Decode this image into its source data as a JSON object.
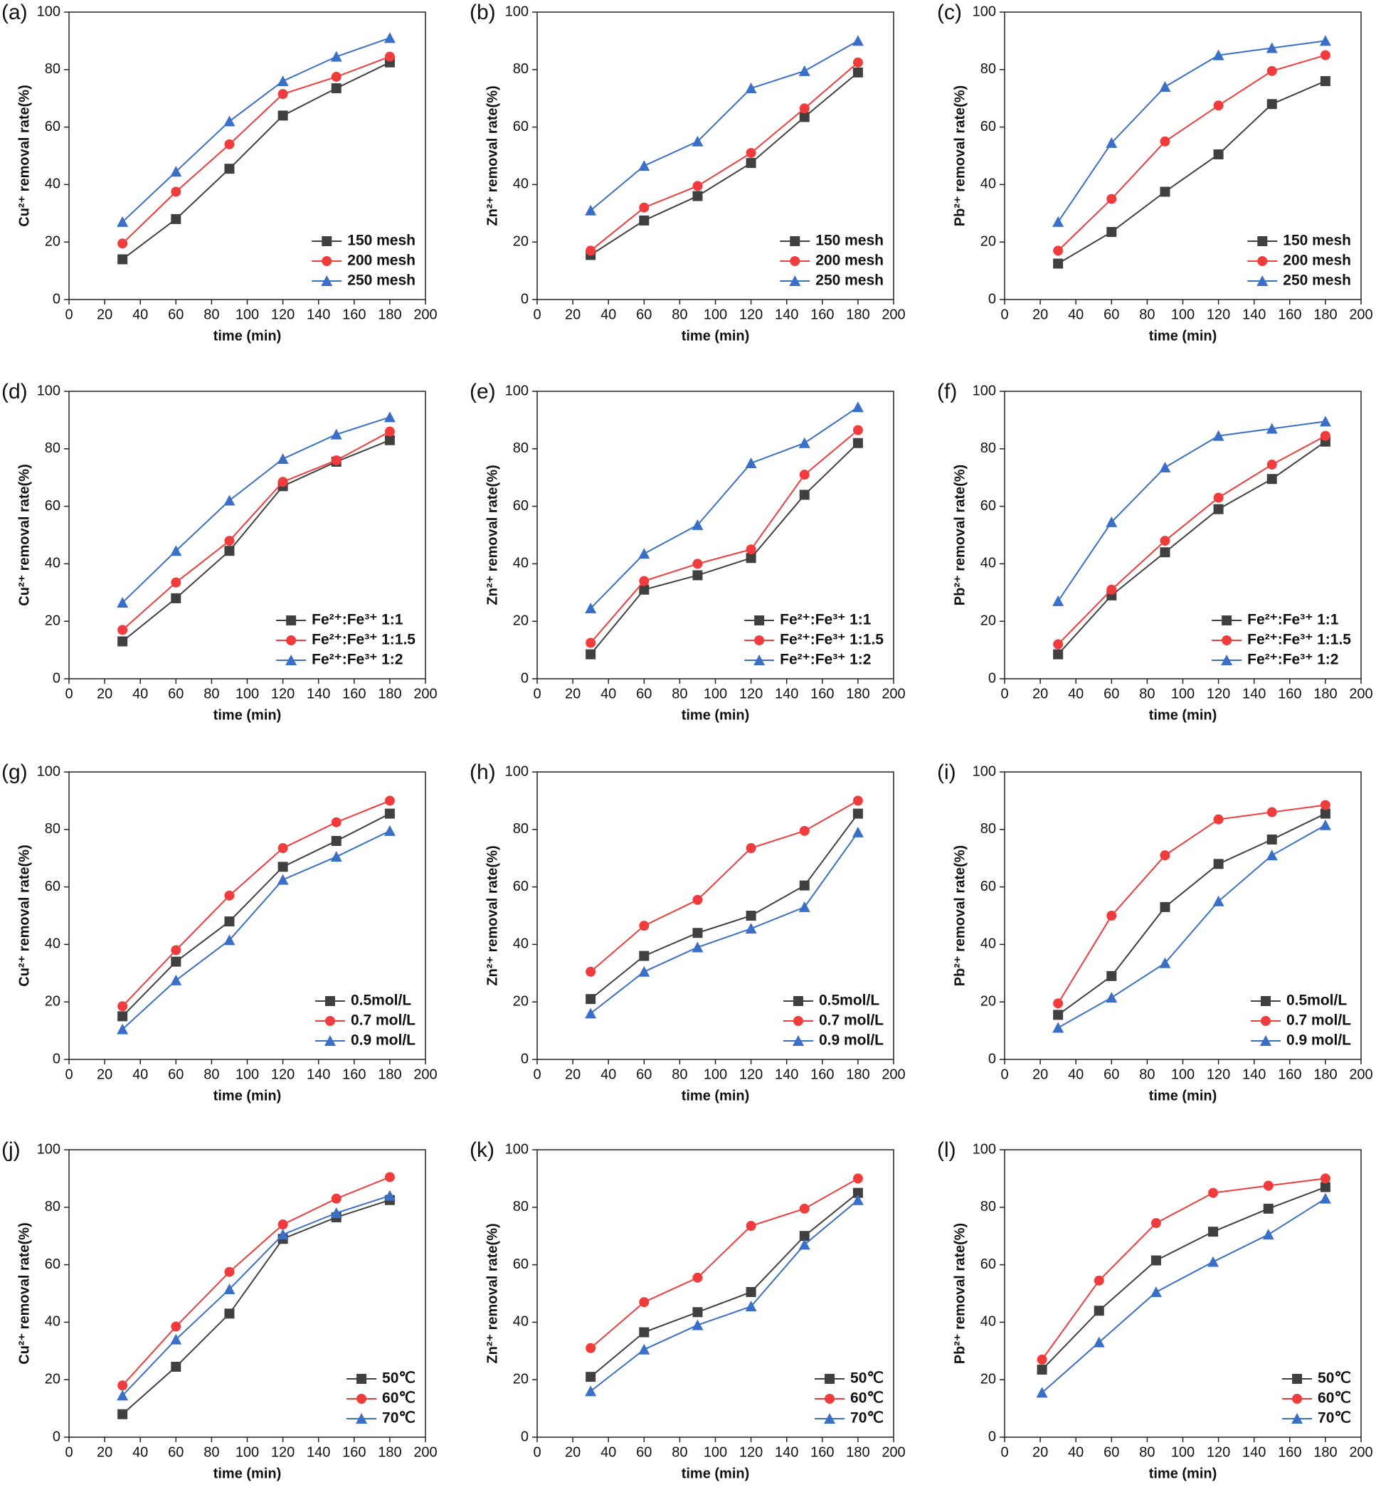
{
  "chart_data": [
    {
      "type": "line",
      "panel": "(a)",
      "xlabel": "time (min)",
      "ylabel": "Cu²⁺ removal rate(%)",
      "x": [
        30,
        60,
        90,
        120,
        150,
        180
      ],
      "xlim": [
        0,
        200
      ],
      "ylim": [
        0,
        100
      ],
      "xticks": [
        0,
        20,
        40,
        60,
        80,
        100,
        120,
        140,
        160,
        180,
        200
      ],
      "yticks": [
        0,
        20,
        40,
        60,
        80,
        100
      ],
      "legend": "lower right",
      "series": [
        {
          "name": "150 mesh",
          "color": "#404040",
          "marker": "square",
          "values": [
            14,
            28,
            45.5,
            64,
            73.5,
            82.5
          ]
        },
        {
          "name": "200 mesh",
          "color": "#f03c3c",
          "marker": "circle",
          "values": [
            19.5,
            37.5,
            54,
            71.5,
            77.5,
            84.5
          ]
        },
        {
          "name": "250 mesh",
          "color": "#3a6fc8",
          "marker": "triangle",
          "values": [
            27,
            44.5,
            62,
            76,
            84.5,
            91
          ]
        }
      ]
    },
    {
      "type": "line",
      "panel": "(b)",
      "xlabel": "time (min)",
      "ylabel": "Zn²⁺ removal rate(%)",
      "x": [
        30,
        60,
        90,
        120,
        150,
        180
      ],
      "xlim": [
        0,
        200
      ],
      "ylim": [
        0,
        100
      ],
      "xticks": [
        0,
        20,
        40,
        60,
        80,
        100,
        120,
        140,
        160,
        180,
        200
      ],
      "yticks": [
        0,
        20,
        40,
        60,
        80,
        100
      ],
      "legend": "lower right",
      "series": [
        {
          "name": "150 mesh",
          "color": "#404040",
          "marker": "square",
          "values": [
            15.5,
            27.5,
            36,
            47.5,
            63.5,
            79
          ]
        },
        {
          "name": "200 mesh",
          "color": "#f03c3c",
          "marker": "circle",
          "values": [
            17,
            32,
            39.5,
            51,
            66.5,
            82.5
          ]
        },
        {
          "name": "250 mesh",
          "color": "#3a6fc8",
          "marker": "triangle",
          "values": [
            31,
            46.5,
            55,
            73.5,
            79.5,
            90
          ]
        }
      ]
    },
    {
      "type": "line",
      "panel": "(c)",
      "xlabel": "time (min)",
      "ylabel": "Pb²⁺ removal rate(%)",
      "x": [
        30,
        60,
        90,
        120,
        150,
        180
      ],
      "xlim": [
        0,
        200
      ],
      "ylim": [
        0,
        100
      ],
      "xticks": [
        0,
        20,
        40,
        60,
        80,
        100,
        120,
        140,
        160,
        180,
        200
      ],
      "yticks": [
        0,
        20,
        40,
        60,
        80,
        100
      ],
      "legend": "lower right",
      "series": [
        {
          "name": "150 mesh",
          "color": "#404040",
          "marker": "square",
          "values": [
            12.5,
            23.5,
            37.5,
            50.5,
            68,
            76
          ]
        },
        {
          "name": "200 mesh",
          "color": "#f03c3c",
          "marker": "circle",
          "values": [
            17,
            35,
            55,
            67.5,
            79.5,
            85
          ]
        },
        {
          "name": "250 mesh",
          "color": "#3a6fc8",
          "marker": "triangle",
          "values": [
            27,
            54.5,
            74,
            85,
            87.5,
            90
          ]
        }
      ]
    },
    {
      "type": "line",
      "panel": "(d)",
      "xlabel": "time (min)",
      "ylabel": "Cu²⁺ removal rate(%)",
      "x": [
        30,
        60,
        90,
        120,
        150,
        180
      ],
      "xlim": [
        0,
        200
      ],
      "ylim": [
        0,
        100
      ],
      "xticks": [
        0,
        20,
        40,
        60,
        80,
        100,
        120,
        140,
        160,
        180,
        200
      ],
      "yticks": [
        0,
        20,
        40,
        60,
        80,
        100
      ],
      "legend": "lower right",
      "series": [
        {
          "name": "Fe²⁺:Fe³⁺  1:1",
          "color": "#404040",
          "marker": "square",
          "values": [
            13,
            28,
            44.5,
            67,
            75.5,
            83
          ]
        },
        {
          "name": "Fe²⁺:Fe³⁺  1:1.5",
          "color": "#f03c3c",
          "marker": "circle",
          "values": [
            17,
            33.5,
            48,
            68.5,
            76,
            86
          ]
        },
        {
          "name": "Fe²⁺:Fe³⁺  1:2",
          "color": "#3a6fc8",
          "marker": "triangle",
          "values": [
            26.5,
            44.5,
            62,
            76.5,
            85,
            91
          ]
        }
      ]
    },
    {
      "type": "line",
      "panel": "(e)",
      "xlabel": "time (min)",
      "ylabel": "Zn²⁺ removal rate(%)",
      "x": [
        30,
        60,
        90,
        120,
        150,
        180
      ],
      "xlim": [
        0,
        200
      ],
      "ylim": [
        0,
        100
      ],
      "xticks": [
        0,
        20,
        40,
        60,
        80,
        100,
        120,
        140,
        160,
        180,
        200
      ],
      "yticks": [
        0,
        20,
        40,
        60,
        80,
        100
      ],
      "legend": "lower right",
      "series": [
        {
          "name": "Fe²⁺:Fe³⁺  1:1",
          "color": "#404040",
          "marker": "square",
          "values": [
            8.5,
            31,
            36,
            42,
            64,
            82
          ]
        },
        {
          "name": "Fe²⁺:Fe³⁺  1:1.5",
          "color": "#f03c3c",
          "marker": "circle",
          "values": [
            12.5,
            34,
            40,
            45,
            71,
            86.5
          ]
        },
        {
          "name": "Fe²⁺:Fe³⁺  1:2",
          "color": "#3a6fc8",
          "marker": "triangle",
          "values": [
            24.5,
            43.5,
            53.5,
            75,
            82,
            94.5
          ]
        }
      ]
    },
    {
      "type": "line",
      "panel": "(f)",
      "xlabel": "time (min)",
      "ylabel": "Pb²⁺ removal rate(%)",
      "x": [
        30,
        60,
        90,
        120,
        150,
        180
      ],
      "xlim": [
        0,
        200
      ],
      "ylim": [
        0,
        100
      ],
      "xticks": [
        0,
        20,
        40,
        60,
        80,
        100,
        120,
        140,
        160,
        180,
        200
      ],
      "yticks": [
        0,
        20,
        40,
        60,
        80,
        100
      ],
      "legend": "lower right",
      "series": [
        {
          "name": "Fe²⁺:Fe³⁺  1:1",
          "color": "#404040",
          "marker": "square",
          "values": [
            8.5,
            29,
            44,
            59,
            69.5,
            82.5
          ]
        },
        {
          "name": "Fe²⁺:Fe³⁺  1:1.5",
          "color": "#f03c3c",
          "marker": "circle",
          "values": [
            12,
            31,
            48,
            63,
            74.5,
            84.5
          ]
        },
        {
          "name": "Fe²⁺:Fe³⁺  1:2",
          "color": "#3a6fc8",
          "marker": "triangle",
          "values": [
            27,
            54.5,
            73.5,
            84.5,
            87,
            89.5
          ]
        }
      ]
    },
    {
      "type": "line",
      "panel": "(g)",
      "xlabel": "time (min)",
      "ylabel": "Cu²⁺ removal rate(%)",
      "x": [
        30,
        60,
        90,
        120,
        150,
        180
      ],
      "xlim": [
        0,
        200
      ],
      "ylim": [
        0,
        100
      ],
      "xticks": [
        0,
        20,
        40,
        60,
        80,
        100,
        120,
        140,
        160,
        180,
        200
      ],
      "yticks": [
        0,
        20,
        40,
        60,
        80,
        100
      ],
      "legend": "lower right",
      "series": [
        {
          "name": "0.5mol/L",
          "color": "#404040",
          "marker": "square",
          "values": [
            15,
            34,
            48,
            67,
            76,
            85.5
          ]
        },
        {
          "name": "0.7 mol/L",
          "color": "#f03c3c",
          "marker": "circle",
          "values": [
            18.5,
            38,
            57,
            73.5,
            82.5,
            90
          ]
        },
        {
          "name": "0.9 mol/L",
          "color": "#3a6fc8",
          "marker": "triangle",
          "values": [
            10.5,
            27.5,
            41.5,
            62.5,
            70.5,
            79.5
          ]
        }
      ]
    },
    {
      "type": "line",
      "panel": "(h)",
      "xlabel": "time (min)",
      "ylabel": "Zn²⁺ removal rate(%)",
      "x": [
        30,
        60,
        90,
        120,
        150,
        180
      ],
      "xlim": [
        0,
        200
      ],
      "ylim": [
        0,
        100
      ],
      "xticks": [
        0,
        20,
        40,
        60,
        80,
        100,
        120,
        140,
        160,
        180,
        200
      ],
      "yticks": [
        0,
        20,
        40,
        60,
        80,
        100
      ],
      "legend": "lower right",
      "series": [
        {
          "name": "0.5mol/L",
          "color": "#404040",
          "marker": "square",
          "values": [
            21,
            36,
            44,
            50,
            60.5,
            85.5
          ]
        },
        {
          "name": "0.7 mol/L",
          "color": "#f03c3c",
          "marker": "circle",
          "values": [
            30.5,
            46.5,
            55.5,
            73.5,
            79.5,
            90
          ]
        },
        {
          "name": "0.9 mol/L",
          "color": "#3a6fc8",
          "marker": "triangle",
          "values": [
            16,
            30.5,
            39,
            45.5,
            53,
            79
          ]
        }
      ]
    },
    {
      "type": "line",
      "panel": "(i)",
      "xlabel": "time (min)",
      "ylabel": "Pb²⁺ removal rate(%)",
      "x": [
        30,
        60,
        90,
        120,
        150,
        180
      ],
      "xlim": [
        0,
        200
      ],
      "ylim": [
        0,
        100
      ],
      "xticks": [
        0,
        20,
        40,
        60,
        80,
        100,
        120,
        140,
        160,
        180,
        200
      ],
      "yticks": [
        0,
        20,
        40,
        60,
        80,
        100
      ],
      "legend": "lower right",
      "series": [
        {
          "name": "0.5mol/L",
          "color": "#404040",
          "marker": "square",
          "values": [
            15.5,
            29,
            53,
            68,
            76.5,
            85.5
          ]
        },
        {
          "name": "0.7 mol/L",
          "color": "#f03c3c",
          "marker": "circle",
          "values": [
            19.5,
            50,
            71,
            83.5,
            86,
            88.5
          ]
        },
        {
          "name": "0.9 mol/L",
          "color": "#3a6fc8",
          "marker": "triangle",
          "values": [
            11,
            21.5,
            33.5,
            55,
            71,
            81.5
          ]
        }
      ]
    },
    {
      "type": "line",
      "panel": "(j)",
      "xlabel": "time (min)",
      "ylabel": "Cu²⁺ removal rate(%)",
      "x": [
        30,
        60,
        90,
        120,
        150,
        180
      ],
      "xlim": [
        0,
        200
      ],
      "ylim": [
        0,
        100
      ],
      "xticks": [
        0,
        20,
        40,
        60,
        80,
        100,
        120,
        140,
        160,
        180,
        200
      ],
      "yticks": [
        0,
        20,
        40,
        60,
        80,
        100
      ],
      "legend": "lower right",
      "series": [
        {
          "name": "50℃",
          "color": "#404040",
          "marker": "square",
          "values": [
            8,
            24.5,
            43,
            69,
            76.5,
            82.5
          ]
        },
        {
          "name": "60℃",
          "color": "#f03c3c",
          "marker": "circle",
          "values": [
            18,
            38.5,
            57.5,
            74,
            83,
            90.5
          ]
        },
        {
          "name": "70℃",
          "color": "#3a6fc8",
          "marker": "triangle",
          "values": [
            14.5,
            34,
            51.5,
            70.5,
            78,
            84
          ]
        }
      ]
    },
    {
      "type": "line",
      "panel": "(k)",
      "xlabel": "time (min)",
      "ylabel": "Zn²⁺ removal rate(%)",
      "x": [
        30,
        60,
        90,
        120,
        150,
        180
      ],
      "xlim": [
        0,
        200
      ],
      "ylim": [
        0,
        100
      ],
      "xticks": [
        0,
        20,
        40,
        60,
        80,
        100,
        120,
        140,
        160,
        180,
        200
      ],
      "yticks": [
        0,
        20,
        40,
        60,
        80,
        100
      ],
      "legend": "lower right",
      "series": [
        {
          "name": "50℃",
          "color": "#404040",
          "marker": "square",
          "values": [
            21,
            36.5,
            43.5,
            50.5,
            70,
            85
          ]
        },
        {
          "name": "60℃",
          "color": "#f03c3c",
          "marker": "circle",
          "values": [
            31,
            47,
            55.5,
            73.5,
            79.5,
            90
          ]
        },
        {
          "name": "70℃",
          "color": "#3a6fc8",
          "marker": "triangle",
          "values": [
            16,
            30.5,
            39,
            45.5,
            67,
            82.5
          ]
        }
      ]
    },
    {
      "type": "line",
      "panel": "(l)",
      "xlabel": "time (min)",
      "ylabel": "Pb²⁺ removal rate(%)",
      "x": [
        21,
        53,
        85,
        117,
        148,
        180
      ],
      "xlim": [
        0,
        200
      ],
      "ylim": [
        0,
        100
      ],
      "xticks": [
        0,
        20,
        40,
        60,
        80,
        100,
        120,
        140,
        160,
        180,
        200
      ],
      "yticks": [
        0,
        20,
        40,
        60,
        80,
        100
      ],
      "legend": "lower right",
      "series": [
        {
          "name": "50℃",
          "color": "#404040",
          "marker": "square",
          "values": [
            23.5,
            44,
            61.5,
            71.5,
            79.5,
            87
          ]
        },
        {
          "name": "60℃",
          "color": "#f03c3c",
          "marker": "circle",
          "values": [
            27,
            54.5,
            74.5,
            85,
            87.5,
            90
          ]
        },
        {
          "name": "70℃",
          "color": "#3a6fc8",
          "marker": "triangle",
          "values": [
            15.5,
            33,
            50.5,
            61,
            70.5,
            83
          ]
        }
      ]
    }
  ]
}
